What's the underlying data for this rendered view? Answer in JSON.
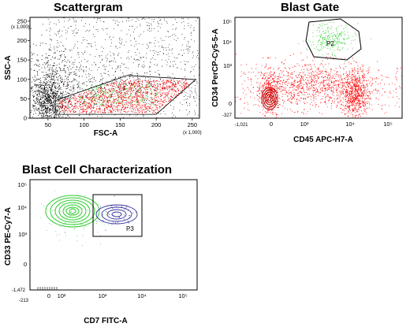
{
  "chart_data": [
    {
      "type": "scatter",
      "title": "Scattergram",
      "xlabel": "FSC-A",
      "ylabel": "SSC-A",
      "x_multiplier": "(x 1,000)",
      "y_multiplier": "(x 1,000)",
      "xlim": [
        25,
        260
      ],
      "ylim": [
        0,
        260
      ],
      "x_ticks": [
        "50",
        "100",
        "150",
        "200",
        "250"
      ],
      "y_ticks": [
        "0",
        "50",
        "100",
        "150",
        "200",
        "250"
      ],
      "x_tick_values": [
        50,
        100,
        150,
        200,
        250
      ],
      "y_tick_values": [
        0,
        50,
        100,
        150,
        200,
        250
      ],
      "gate_polygon": [
        [
          60,
          10
        ],
        [
          200,
          10
        ],
        [
          255,
          100
        ],
        [
          160,
          110
        ],
        [
          75,
          55
        ],
        [
          60,
          45
        ]
      ],
      "colors": {
        "events": "#000000",
        "gated": "#ff0000",
        "blasts": "#33cc33"
      }
    },
    {
      "type": "scatter",
      "title": "Blast Gate",
      "xlabel": "CD45 APC-H7-A",
      "ylabel": "CD34 PerCP-Cy5-5-A",
      "x_scale": "log",
      "y_scale": "log",
      "x_ticks": [
        "-1,021",
        "0",
        "10³",
        "10⁴",
        "10⁵"
      ],
      "y_ticks": [
        "-327",
        "0",
        "10³",
        "10⁴",
        "10⁵"
      ],
      "gate_label": "P2",
      "colors": {
        "events": "#ff0000",
        "gated": "#33cc33",
        "contour": "#b30000",
        "gate": "#000000"
      }
    },
    {
      "type": "contour",
      "title": "Blast Cell Characterization",
      "xlabel": "CD7 FITC-A",
      "ylabel": "CD33 PE-Cy7-A",
      "x_scale": "log",
      "y_scale": "log",
      "x_ticks": [
        "-213",
        "0",
        "10²",
        "10³",
        "10⁴",
        "10⁵"
      ],
      "y_ticks": [
        "-1,472",
        "0",
        "10³",
        "10⁴",
        "10⁵"
      ],
      "gate_label": "P3",
      "colors": {
        "population_1": "#33cc33",
        "population_2": "#333399",
        "gate": "#000000"
      }
    }
  ]
}
